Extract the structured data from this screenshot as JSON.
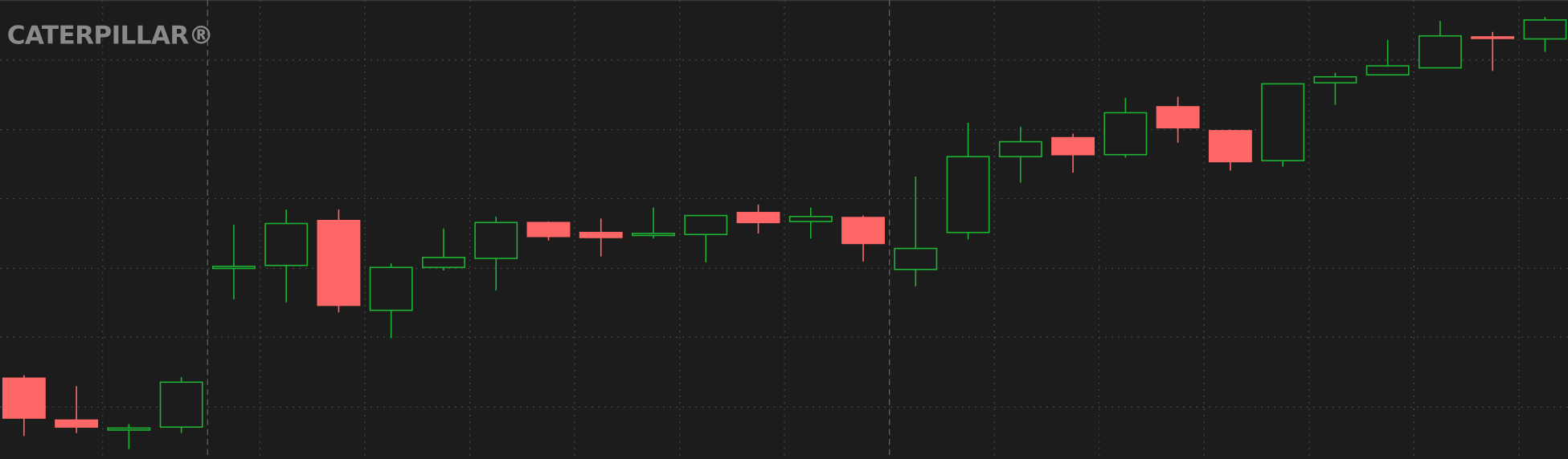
{
  "chart_data": {
    "type": "candlestick",
    "title": "CATERPILLAR®",
    "open": [
      81,
      39,
      29,
      32,
      191,
      194,
      239,
      149,
      192,
      201,
      237,
      227,
      224,
      225,
      247,
      238,
      242,
      190,
      227,
      303,
      322,
      305,
      353,
      329,
      299,
      377,
      385,
      392,
      423,
      421
    ],
    "high": [
      84,
      73,
      35,
      82,
      235,
      250,
      250,
      196,
      231,
      243,
      238,
      241,
      252,
      244,
      255,
      252,
      244,
      283,
      337,
      333,
      326,
      362,
      363,
      330,
      376,
      387,
      420,
      439,
      428,
      443
    ],
    "low": [
      23,
      26,
      10,
      26,
      160,
      157,
      147,
      121,
      189,
      169,
      219,
      203,
      221,
      197,
      226,
      221,
      198,
      173,
      220,
      277,
      287,
      302,
      317,
      289,
      293,
      355,
      385,
      392,
      389,
      408
    ],
    "close": [
      41,
      32,
      31,
      77,
      193,
      236,
      154,
      192,
      202,
      237,
      223,
      222,
      226,
      244,
      237,
      243,
      216,
      211,
      303,
      318,
      305,
      347,
      332,
      298,
      376,
      383,
      394,
      424,
      422,
      440
    ],
    "ylim": [
      0,
      460
    ],
    "yticks": [
      52,
      122,
      191,
      261,
      330,
      400
    ],
    "grid": true,
    "up_color": "#1db233",
    "down_color": "#ff6666"
  }
}
